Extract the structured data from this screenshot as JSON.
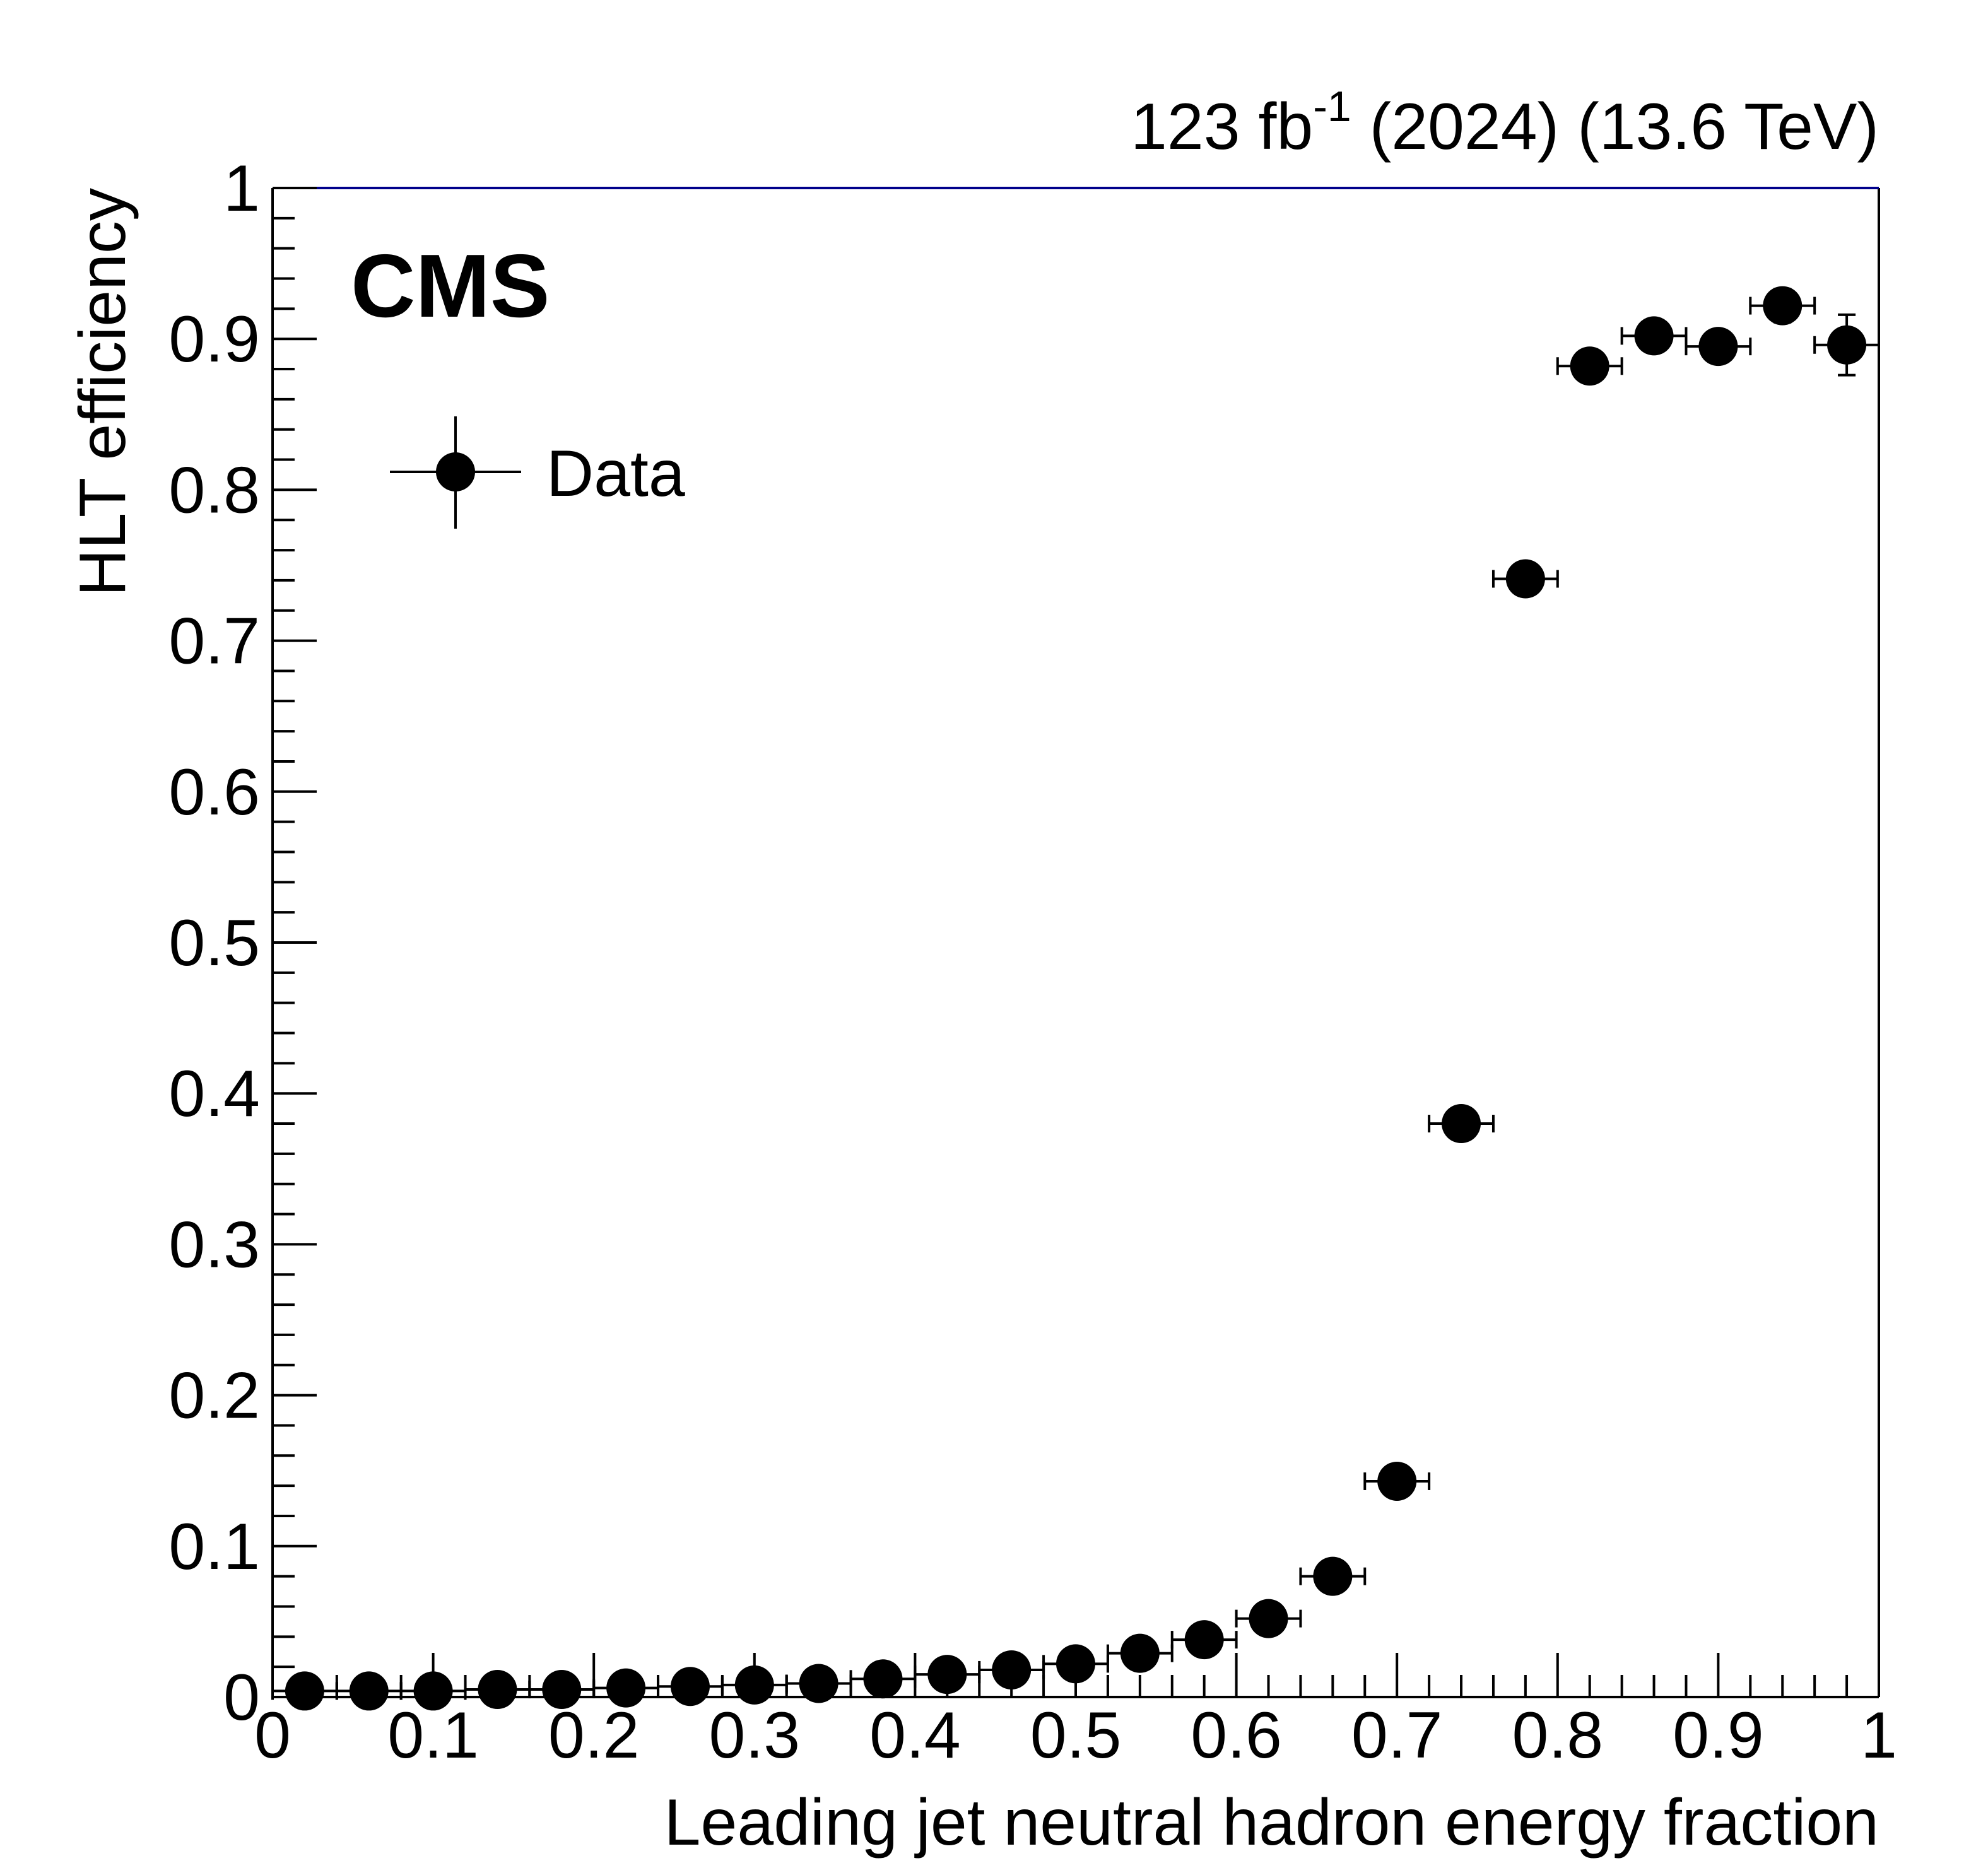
{
  "chart_data": {
    "type": "scatter",
    "experiment_label": "CMS",
    "lumi_label": "123 fb",
    "lumi_superscript": "-1",
    "lumi_suffix": " (2024) (13.6 TeV)",
    "xlabel": "Leading jet neutral hadron energy fraction",
    "ylabel": "HLT efficiency",
    "xlim": [
      0,
      1
    ],
    "ylim": [
      0,
      1
    ],
    "x_ticks": [
      "0",
      "0.1",
      "0.2",
      "0.3",
      "0.4",
      "0.5",
      "0.6",
      "0.7",
      "0.8",
      "0.9",
      "1"
    ],
    "y_ticks": [
      "0",
      "0.1",
      "0.2",
      "0.3",
      "0.4",
      "0.5",
      "0.6",
      "0.7",
      "0.8",
      "0.9",
      "1"
    ],
    "legend": {
      "placement": "top-left",
      "entries": [
        {
          "label": "Data",
          "marker": "filled-circle"
        }
      ]
    },
    "colors": {
      "marker": "#000000",
      "frame": "#000000",
      "top_border": "#00008b"
    },
    "bin_half_width": 0.02,
    "series": [
      {
        "name": "Data",
        "x": [
          0.02,
          0.06,
          0.1,
          0.14,
          0.18,
          0.22,
          0.26,
          0.3,
          0.34,
          0.38,
          0.42,
          0.46,
          0.5,
          0.54,
          0.58,
          0.62,
          0.66,
          0.7,
          0.74,
          0.78,
          0.82,
          0.86,
          0.9,
          0.94,
          0.98
        ],
        "y": [
          0.004,
          0.004,
          0.004,
          0.005,
          0.005,
          0.006,
          0.007,
          0.008,
          0.009,
          0.012,
          0.015,
          0.018,
          0.022,
          0.029,
          0.038,
          0.052,
          0.08,
          0.143,
          0.38,
          0.741,
          0.882,
          0.902,
          0.895,
          0.922,
          0.896
        ],
        "y_err": [
          0.001,
          0.001,
          0.001,
          0.001,
          0.001,
          0.001,
          0.001,
          0.001,
          0.001,
          0.001,
          0.001,
          0.001,
          0.002,
          0.002,
          0.002,
          0.003,
          0.004,
          0.006,
          0.008,
          0.008,
          0.008,
          0.008,
          0.009,
          0.011,
          0.02
        ]
      }
    ]
  }
}
